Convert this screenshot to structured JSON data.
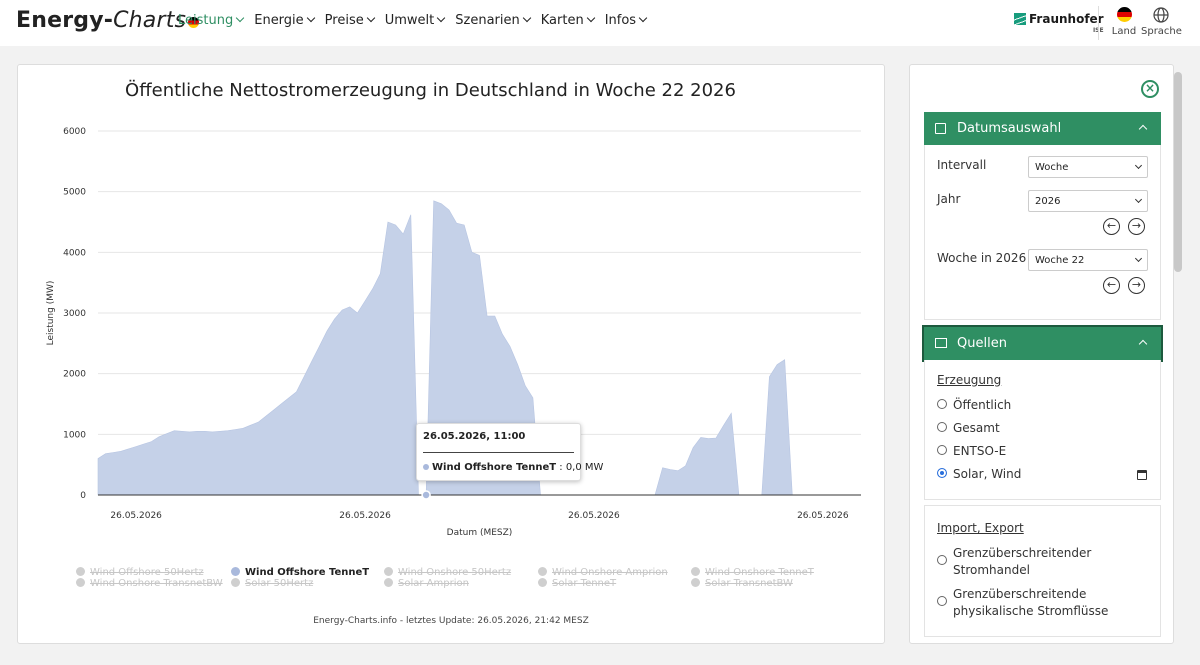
{
  "header": {
    "logo_main": "Energy-",
    "logo_italic": "Charts",
    "nav": [
      {
        "label": "Leistung",
        "active": true
      },
      {
        "label": "Energie",
        "active": false
      },
      {
        "label": "Preise",
        "active": false
      },
      {
        "label": "Umwelt",
        "active": false
      },
      {
        "label": "Szenarien",
        "active": false
      },
      {
        "label": "Karten",
        "active": false
      },
      {
        "label": "Infos",
        "active": false
      }
    ],
    "partner": "Fraunhofer",
    "partner_sub": "ISE",
    "land_label": "Land",
    "sprache_label": "Sprache"
  },
  "chart": {
    "title": "Öffentliche Nettostromerzeugung in Deutschland in Woche 22 2026",
    "footer": "Energy-Charts.info - letztes Update: 26.05.2026, 21:42 MESZ",
    "tooltip": {
      "date": "26.05.2026, 11:00",
      "series": "Wind Offshore TenneT",
      "value": ": 0,0 MW"
    },
    "legend": [
      {
        "label": "Wind Offshore 50Hertz",
        "on": false
      },
      {
        "label": "Wind Offshore TenneT",
        "on": true
      },
      {
        "label": "Wind Onshore 50Hertz",
        "on": false
      },
      {
        "label": "Wind Onshore Amprion",
        "on": false
      },
      {
        "label": "Wind Onshore TenneT",
        "on": false
      },
      {
        "label": "Wind Onshore TransnetBW",
        "on": false
      },
      {
        "label": "Solar 50Hertz",
        "on": false
      },
      {
        "label": "Solar Amprion",
        "on": false
      },
      {
        "label": "Solar TenneT",
        "on": false
      },
      {
        "label": "Solar TransnetBW",
        "on": false
      }
    ],
    "series_color": "#c5d1e8"
  },
  "chart_data": {
    "type": "area",
    "title": "Öffentliche Nettostromerzeugung in Deutschland in Woche 22 2026",
    "xlabel": "Datum (MESZ)",
    "ylabel": "Leistung (MW)",
    "ylim": [
      0,
      6000
    ],
    "yticks": [
      0,
      1000,
      2000,
      3000,
      4000,
      5000,
      6000
    ],
    "xtick_labels": [
      "26.05.2026",
      "26.05.2026",
      "26.05.2026",
      "26.05.2026"
    ],
    "grid": true,
    "series": [
      {
        "name": "Wind Offshore TenneT",
        "x": [
          0,
          0.5,
          1,
          1.5,
          2,
          2.5,
          3,
          3.5,
          4,
          4.5,
          5,
          5.5,
          6,
          6.5,
          7,
          7.5,
          8,
          8.5,
          9,
          9.5,
          10,
          10.5,
          11,
          11.5,
          12,
          12.5,
          13,
          13.5,
          14,
          14.5,
          15,
          15.5,
          16,
          16.5,
          17,
          17.5,
          18,
          18.5,
          19,
          19.5,
          20,
          20.5,
          21,
          21.5,
          22,
          22.5,
          23,
          23.5,
          24,
          24.5,
          25,
          25.5,
          26,
          26.5,
          27,
          27.5,
          28,
          28.5,
          29,
          29.5,
          30,
          30.5,
          31,
          31.5,
          32,
          32.5,
          33,
          33.5,
          34,
          34.5,
          35,
          35.5,
          36,
          36.5,
          37,
          37.5,
          38,
          38.5,
          39,
          39.5,
          40,
          40.5,
          41,
          41.5,
          42,
          42.5,
          43,
          43.5,
          44,
          44.5,
          45,
          45.5,
          46,
          46.5,
          47,
          47.5,
          48,
          48.5,
          49,
          49.5,
          50
        ],
        "values": [
          600,
          680,
          700,
          720,
          760,
          800,
          840,
          880,
          960,
          1010,
          1060,
          1050,
          1040,
          1050,
          1050,
          1040,
          1050,
          1060,
          1080,
          1100,
          1150,
          1200,
          1300,
          1400,
          1500,
          1600,
          1700,
          1950,
          2200,
          2450,
          2700,
          2900,
          3050,
          3100,
          3000,
          3200,
          3400,
          3650,
          4500,
          4450,
          4300,
          4620,
          0,
          0,
          4850,
          4800,
          4700,
          4480,
          4450,
          4000,
          3950,
          2950,
          2950,
          2650,
          2450,
          2150,
          1800,
          1600,
          0,
          0,
          0,
          0,
          0,
          0,
          0,
          0,
          0,
          0,
          0,
          0,
          0,
          0,
          0,
          0,
          450,
          420,
          400,
          480,
          780,
          950,
          930,
          940,
          1150,
          1350,
          0,
          0,
          0,
          0,
          1950,
          2150,
          2230,
          0,
          0,
          0,
          0,
          0,
          0,
          0,
          0,
          0,
          0
        ]
      }
    ]
  },
  "sidebar": {
    "datum": {
      "title": "Datumsauswahl",
      "intervall_label": "Intervall",
      "intervall_value": "Woche",
      "jahr_label": "Jahr",
      "jahr_value": "2026",
      "woche_label": "Woche in 2026",
      "woche_value": "Woche 22"
    },
    "quellen": {
      "title": "Quellen",
      "erzeugung_label": "Erzeugung",
      "options": [
        {
          "label": "Öffentlich",
          "checked": false
        },
        {
          "label": "Gesamt",
          "checked": false
        },
        {
          "label": "ENTSO-E",
          "checked": false
        },
        {
          "label": "Solar, Wind",
          "checked": true
        }
      ],
      "import_label": "Import, Export",
      "import_options": [
        {
          "line1": "Grenzüberschreitender",
          "line2": "Stromhandel"
        },
        {
          "line1": "Grenzüberschreitende",
          "line2": "physikalische Stromflüsse"
        }
      ]
    }
  }
}
